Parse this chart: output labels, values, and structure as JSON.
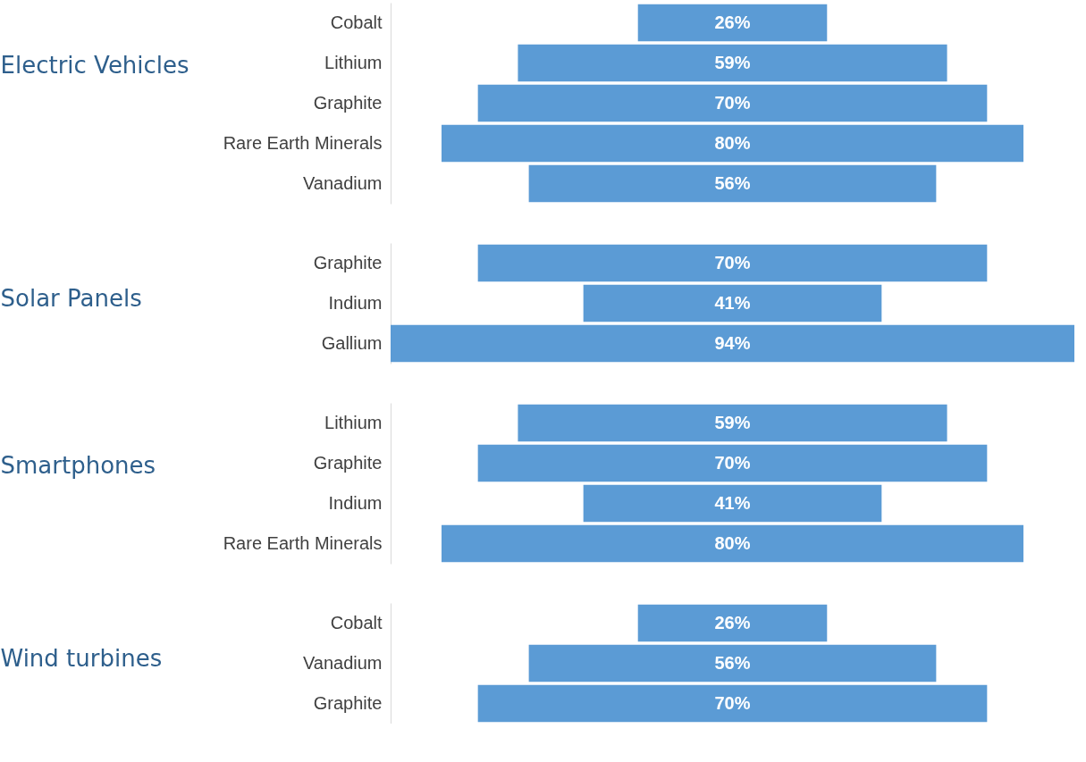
{
  "chart_data": [
    {
      "type": "other",
      "ylabel": "Electric Vehicles",
      "color": "#5b9bd5",
      "categories": [
        "Cobalt",
        "Lithium",
        "Graphite",
        "Rare Earth Minerals",
        "Vanadium"
      ],
      "values": [
        26,
        59,
        70,
        80,
        56
      ],
      "value_labels": [
        "26%",
        "59%",
        "70%",
        "80%",
        "56%"
      ]
    },
    {
      "type": "other",
      "ylabel": "Solar Panels",
      "color": "#5b9bd5",
      "categories": [
        "Graphite",
        "Indium",
        "Gallium"
      ],
      "values": [
        70,
        41,
        94
      ],
      "value_labels": [
        "70%",
        "41%",
        "94%"
      ]
    },
    {
      "type": "other",
      "ylabel": "Smartphones",
      "color": "#5b9bd5",
      "categories": [
        "Lithium",
        "Graphite",
        "Indium",
        "Rare Earth Minerals"
      ],
      "values": [
        59,
        70,
        41,
        80
      ],
      "value_labels": [
        "59%",
        "70%",
        "41%",
        "80%"
      ]
    },
    {
      "type": "other",
      "ylabel": "Wind turbines",
      "color": "#5b9bd5",
      "categories": [
        "Cobalt",
        "Vanadium",
        "Graphite"
      ],
      "values": [
        26,
        56,
        70
      ],
      "value_labels": [
        "26%",
        "56%",
        "70%"
      ]
    }
  ]
}
